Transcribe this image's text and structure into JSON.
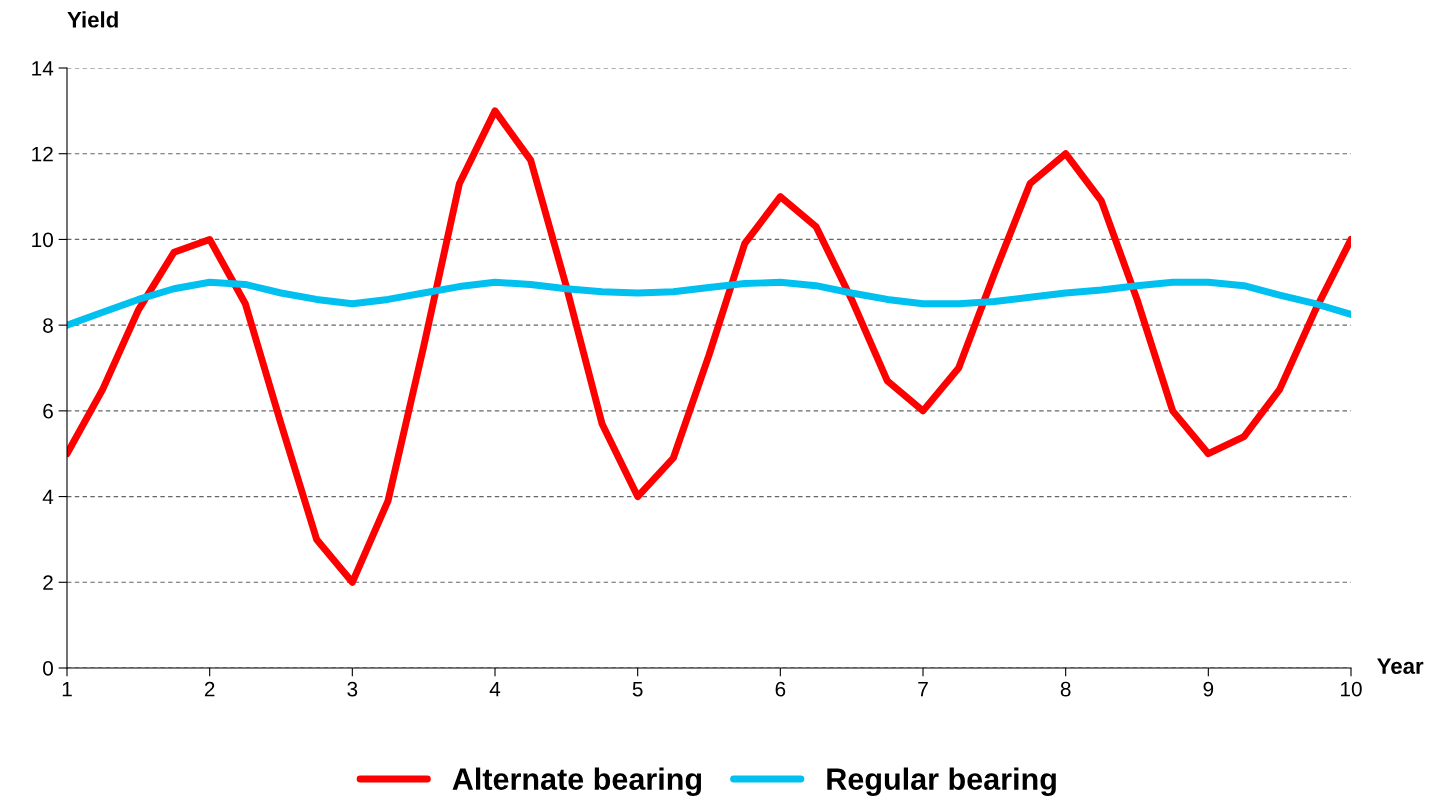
{
  "chart_data": {
    "type": "line",
    "xlabel": "Year",
    "ylabel": "Yield",
    "x": [
      1,
      1.25,
      1.5,
      1.75,
      2,
      2.25,
      2.5,
      2.75,
      3,
      3.25,
      3.5,
      3.75,
      4,
      4.25,
      4.5,
      4.75,
      5,
      5.25,
      5.5,
      5.75,
      6,
      6.25,
      6.5,
      6.75,
      7,
      7.25,
      7.5,
      7.75,
      8,
      8.25,
      8.5,
      8.75,
      9,
      9.25,
      9.5,
      9.75,
      10
    ],
    "series": [
      {
        "name": "Alternate bearing",
        "color": "#ff0000",
        "values": [
          5,
          6.5,
          8.35,
          9.7,
          10,
          8.5,
          5.7,
          3.0,
          2,
          3.9,
          7.5,
          11.3,
          13,
          11.85,
          8.9,
          5.7,
          4,
          4.9,
          7.3,
          9.9,
          11,
          10.3,
          8.6,
          6.7,
          6,
          7.0,
          9.2,
          11.3,
          12,
          10.9,
          8.6,
          6.0,
          5,
          5.4,
          6.5,
          8.35,
          10
        ]
      },
      {
        "name": "Regular bearing",
        "color": "#00c0f0",
        "values": [
          8,
          8.3,
          8.6,
          8.85,
          9,
          8.95,
          8.75,
          8.6,
          8.5,
          8.6,
          8.75,
          8.9,
          9,
          8.95,
          8.85,
          8.78,
          8.75,
          8.78,
          8.88,
          8.97,
          9,
          8.92,
          8.75,
          8.6,
          8.5,
          8.5,
          8.55,
          8.65,
          8.75,
          8.82,
          8.92,
          9,
          9,
          8.92,
          8.7,
          8.5,
          8.25
        ]
      }
    ],
    "xlim": [
      1,
      10
    ],
    "xticks": [
      1,
      2,
      3,
      4,
      5,
      6,
      7,
      8,
      9,
      10
    ],
    "ylim": [
      0,
      14
    ],
    "yticks": [
      0,
      2,
      4,
      6,
      8,
      10,
      12,
      14
    ],
    "grid": "y",
    "legend": "bottom",
    "marker": "none",
    "line_style": "solid"
  }
}
